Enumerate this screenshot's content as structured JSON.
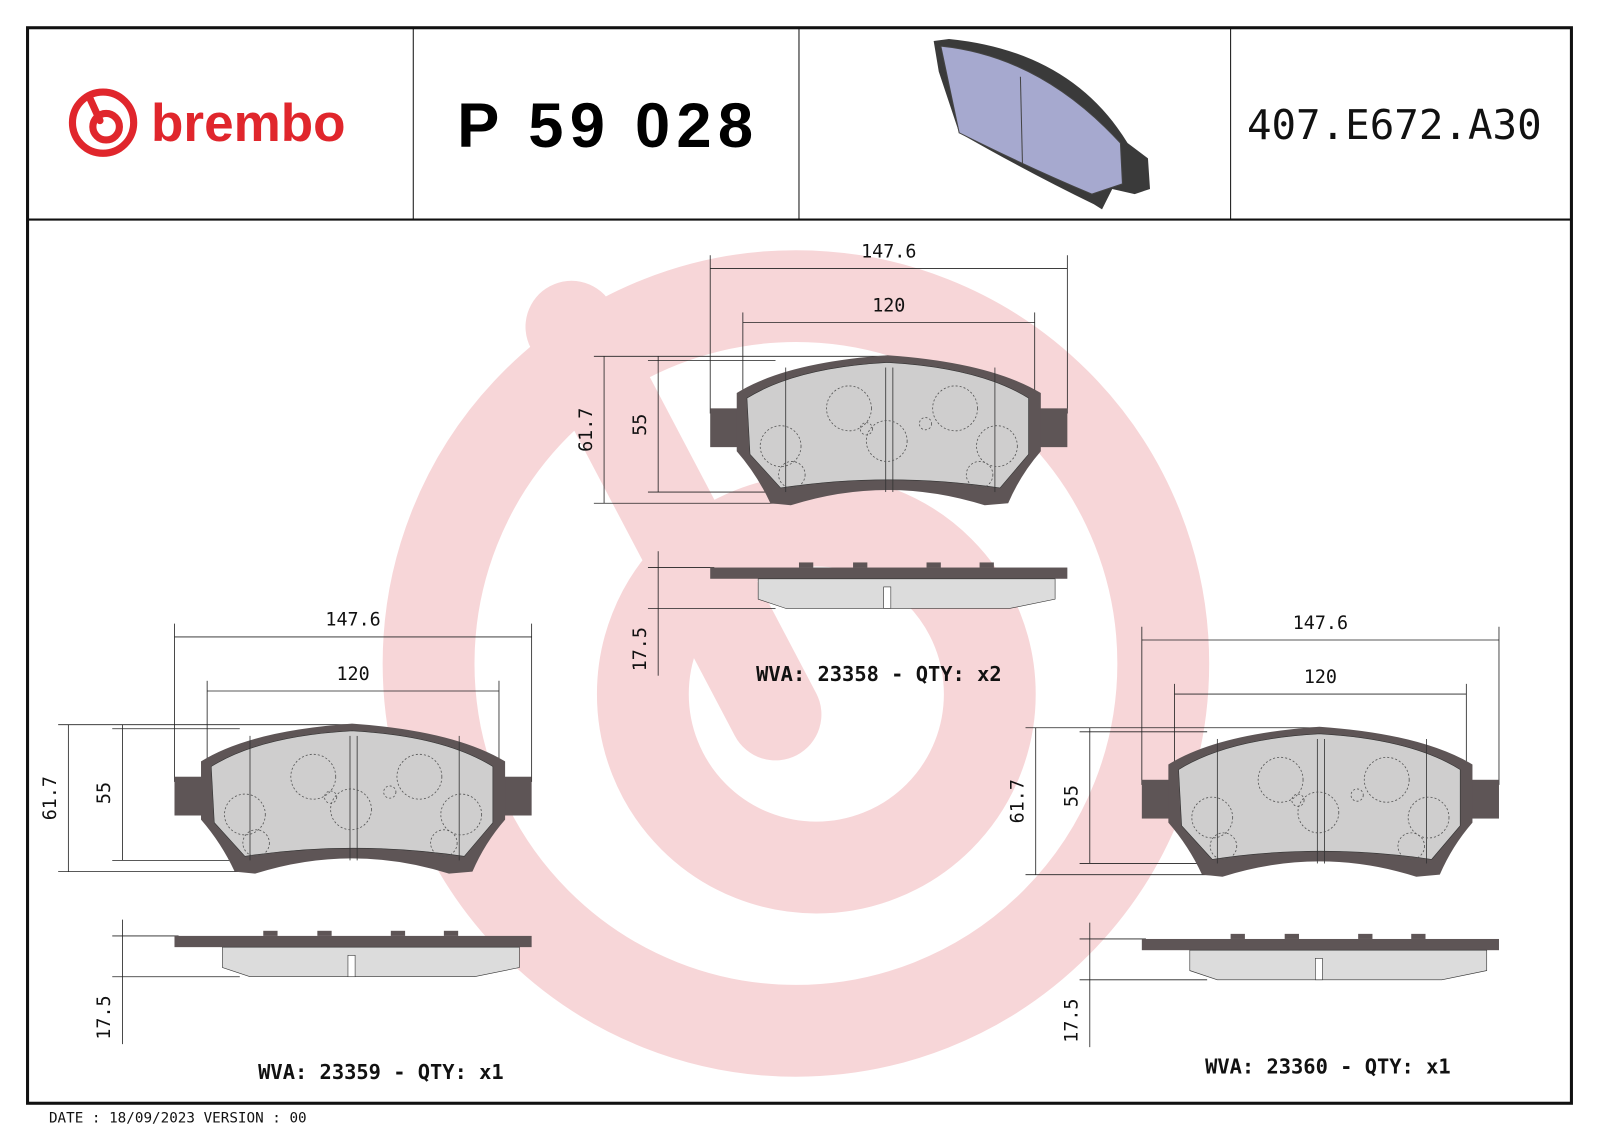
{
  "header": {
    "logo_text": "brembo",
    "part_number": "P 59 028",
    "reference_code": "407.E672.A30"
  },
  "colors": {
    "brand": "#e0262c",
    "watermark": "#f7d6d8",
    "backing_plate": "#5e5556",
    "friction": "#dcdcdc",
    "iso_pad": "#a6a9cf"
  },
  "views": [
    {
      "id": "top",
      "width_outer": "147.6",
      "width_inner": "120",
      "height_outer": "61.7",
      "height_inner": "55",
      "thickness": "17.5",
      "label": "WVA: 23358 - QTY: x2"
    },
    {
      "id": "left",
      "width_outer": "147.6",
      "width_inner": "120",
      "height_outer": "61.7",
      "height_inner": "55",
      "thickness": "17.5",
      "label": "WVA: 23359 - QTY: x1"
    },
    {
      "id": "right",
      "width_outer": "147.6",
      "width_inner": "120",
      "height_outer": "61.7",
      "height_inner": "55",
      "thickness": "17.5",
      "label": "WVA: 23360 - QTY: x1"
    }
  ],
  "footer": {
    "text": "DATE : 18/09/2023 VERSION : 00"
  }
}
